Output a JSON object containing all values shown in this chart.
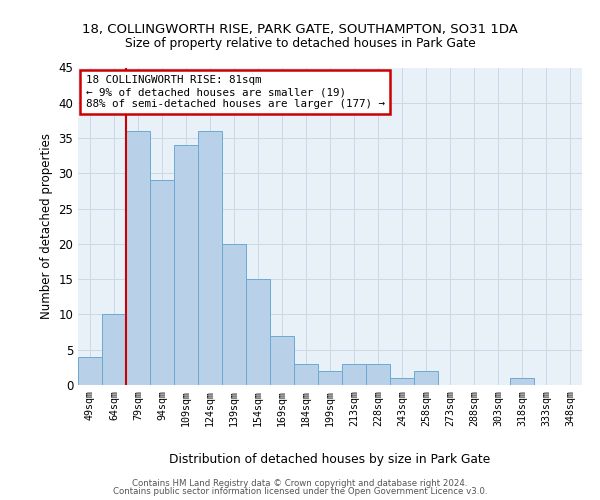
{
  "title": "18, COLLINGWORTH RISE, PARK GATE, SOUTHAMPTON, SO31 1DA",
  "subtitle": "Size of property relative to detached houses in Park Gate",
  "xlabel": "Distribution of detached houses by size in Park Gate",
  "ylabel": "Number of detached properties",
  "bar_labels": [
    "49sqm",
    "64sqm",
    "79sqm",
    "94sqm",
    "109sqm",
    "124sqm",
    "139sqm",
    "154sqm",
    "169sqm",
    "184sqm",
    "199sqm",
    "213sqm",
    "228sqm",
    "243sqm",
    "258sqm",
    "273sqm",
    "288sqm",
    "303sqm",
    "318sqm",
    "333sqm",
    "348sqm"
  ],
  "bar_values": [
    4,
    10,
    36,
    29,
    34,
    36,
    20,
    15,
    7,
    3,
    2,
    3,
    3,
    1,
    2,
    0,
    0,
    0,
    1,
    0,
    0
  ],
  "bar_color": "#b8d0e8",
  "bar_edge_color": "#6aaad4",
  "marker_color": "#cc0000",
  "ylim": [
    0,
    45
  ],
  "yticks": [
    0,
    5,
    10,
    15,
    20,
    25,
    30,
    35,
    40,
    45
  ],
  "annotation_title": "18 COLLINGWORTH RISE: 81sqm",
  "annotation_line1": "← 9% of detached houses are smaller (19)",
  "annotation_line2": "88% of semi-detached houses are larger (177) →",
  "annotation_box_color": "#cc0000",
  "annotation_fill": "#ffffff",
  "grid_color": "#ccd8e8",
  "bg_color": "#e8f0f8",
  "footer1": "Contains HM Land Registry data © Crown copyright and database right 2024.",
  "footer2": "Contains public sector information licensed under the Open Government Licence v3.0."
}
